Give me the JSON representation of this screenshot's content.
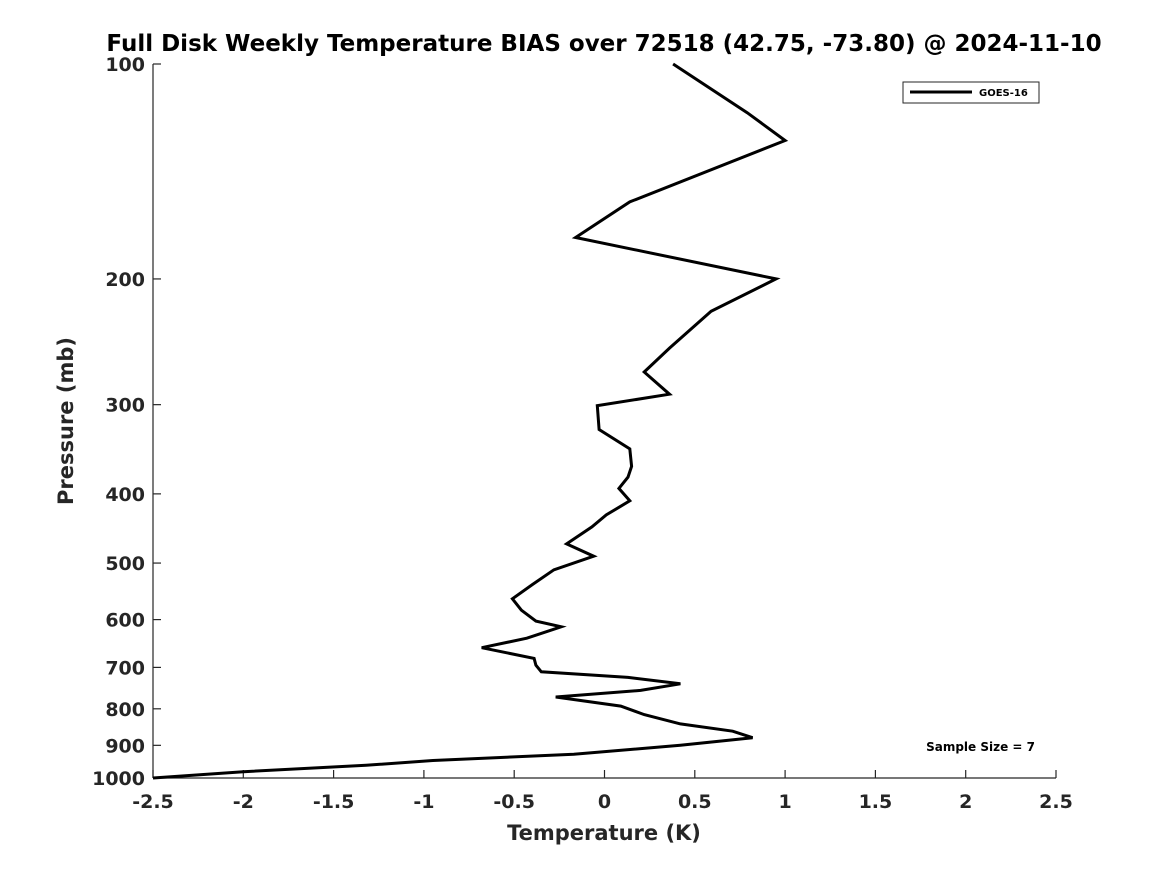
{
  "chart_data": {
    "type": "line",
    "title": "Full Disk Weekly Temperature BIAS over 72518 (42.75, -73.80) @ 2024-11-10",
    "xlabel": "Temperature (K)",
    "ylabel": "Pressure (mb)",
    "xlim": [
      -2.5,
      2.5
    ],
    "ylim": [
      1000,
      100
    ],
    "y_scale": "log",
    "y_reversed": true,
    "grid": false,
    "legend_position": "top-right",
    "x_ticks": [
      -2.5,
      -2,
      -1.5,
      -1,
      -0.5,
      0,
      0.5,
      1,
      1.5,
      2,
      2.5
    ],
    "x_tick_labels": [
      "-2.5",
      "-2",
      "-1.5",
      "-1",
      "-0.5",
      "0",
      "0.5",
      "1",
      "1.5",
      "2",
      "2.5"
    ],
    "y_ticks": [
      100,
      200,
      300,
      400,
      500,
      600,
      700,
      800,
      900,
      1000
    ],
    "y_tick_labels": [
      "100",
      "200",
      "300",
      "400",
      "500",
      "600",
      "700",
      "800",
      "900",
      "1000"
    ],
    "annotation": "Sample Size = 7",
    "series": [
      {
        "name": "GOES-16",
        "color": "#000000",
        "x": [
          0.38,
          0.79,
          1.0,
          0.14,
          -0.16,
          0.95,
          0.59,
          0.36,
          0.22,
          0.36,
          -0.04,
          -0.03,
          0.14,
          0.15,
          0.13,
          0.08,
          0.14,
          0.01,
          -0.07,
          -0.21,
          -0.06,
          -0.28,
          -0.4,
          -0.51,
          -0.46,
          -0.38,
          -0.24,
          -0.43,
          -0.68,
          -0.39,
          -0.38,
          -0.35,
          0.13,
          0.42,
          0.2,
          -0.27,
          0.09,
          0.22,
          0.42,
          0.71,
          0.82,
          0.42,
          -0.17,
          -0.95,
          -1.32,
          -2.0,
          -2.5
        ],
        "y": [
          100,
          117,
          128,
          156,
          175,
          200,
          222,
          250,
          270,
          290,
          301,
          325,
          346,
          366,
          379,
          393,
          409,
          428,
          445,
          470,
          489,
          511,
          536,
          561,
          582,
          603,
          614,
          637,
          657,
          680,
          695,
          710,
          723,
          738,
          754,
          770,
          793,
          815,
          840,
          860,
          878,
          900,
          926,
          945,
          960,
          980,
          1000
        ]
      }
    ]
  }
}
